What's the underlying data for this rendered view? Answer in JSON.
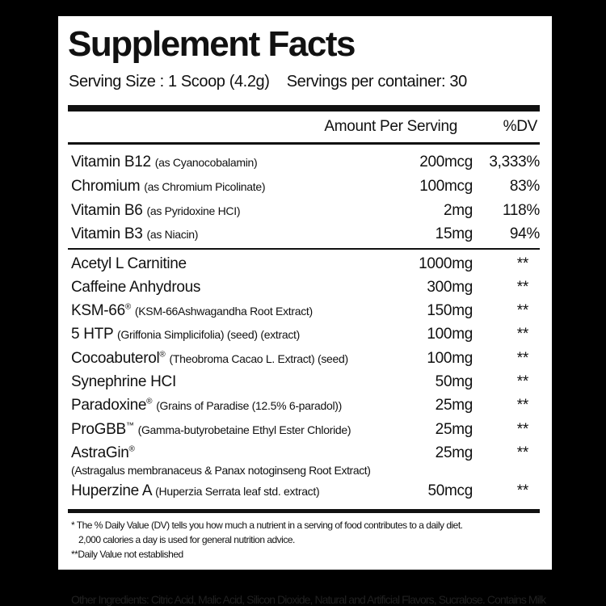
{
  "title": "Supplement Facts",
  "serving_size": "Serving Size : 1 Scoop (4.2g)",
  "servings_per_container": "Servings per container: 30",
  "header": {
    "amount": "Amount Per Serving",
    "dv": "%DV"
  },
  "vitamins": [
    {
      "name": "Vitamin B12",
      "detail": "(as Cyanocobalamin)",
      "amount": "200mcg",
      "dv": "3,333%"
    },
    {
      "name": "Chromium",
      "detail": "(as Chromium Picolinate)",
      "amount": "100mcg",
      "dv": "83%"
    },
    {
      "name": "Vitamin B6",
      "detail": "(as Pyridoxine HCI)",
      "amount": "2mg",
      "dv": "118%"
    },
    {
      "name": "Vitamin B3",
      "detail": "(as Niacin)",
      "amount": "15mg",
      "dv": "94%"
    }
  ],
  "ingredients": [
    {
      "name": "Acetyl L Carnitine",
      "mark": "",
      "detail": "",
      "amount": "1000mg",
      "dv": "**"
    },
    {
      "name": "Caffeine Anhydrous",
      "mark": "",
      "detail": "",
      "amount": "300mg",
      "dv": "**"
    },
    {
      "name": "KSM-66",
      "mark": "®",
      "detail": "(KSM-66Ashwagandha Root Extract)",
      "amount": "150mg",
      "dv": "**"
    },
    {
      "name": "5 HTP",
      "mark": "",
      "detail": "(Griffonia Simplicifolia) (seed) (extract)",
      "amount": "100mg",
      "dv": "**"
    },
    {
      "name": "Cocoabuterol",
      "mark": "®",
      "detail": "(Theobroma Cacao L. Extract) (seed)",
      "amount": "100mg",
      "dv": "**"
    },
    {
      "name": "Synephrine HCI",
      "mark": "",
      "detail": "",
      "amount": "50mg",
      "dv": "**"
    },
    {
      "name": "Paradoxine",
      "mark": "®",
      "detail": "(Grains of Paradise (12.5% 6-paradol))",
      "amount": "25mg",
      "dv": "**"
    },
    {
      "name": "ProGBB",
      "mark": "™",
      "detail": "(Gamma-butyrobetaine Ethyl Ester Chloride)",
      "amount": "25mg",
      "dv": "**"
    },
    {
      "name": "AstraGin",
      "mark": "®",
      "detail": "",
      "detail2": "(Astragalus membranaceus & Panax notoginseng Root Extract)",
      "amount": "25mg",
      "dv": "**"
    },
    {
      "name": "Huperzine A",
      "mark": "",
      "detail": "(Huperzia Serrata leaf std. extract)",
      "amount": "50mcg",
      "dv": "**"
    }
  ],
  "footnotes": [
    "* The % Daily Value (DV) tells you how much a nutrient in a serving of food contributes to a daily diet.",
    "2,000 calories a day is used for general nutrition advice.",
    "**Daily Value not established"
  ],
  "other_ingredients": "Other Ingredients: Citric Acid, Malic Acid, Silicon Dioxide, Natural and Artificial Flavors, Sucralose. Contains Milk"
}
